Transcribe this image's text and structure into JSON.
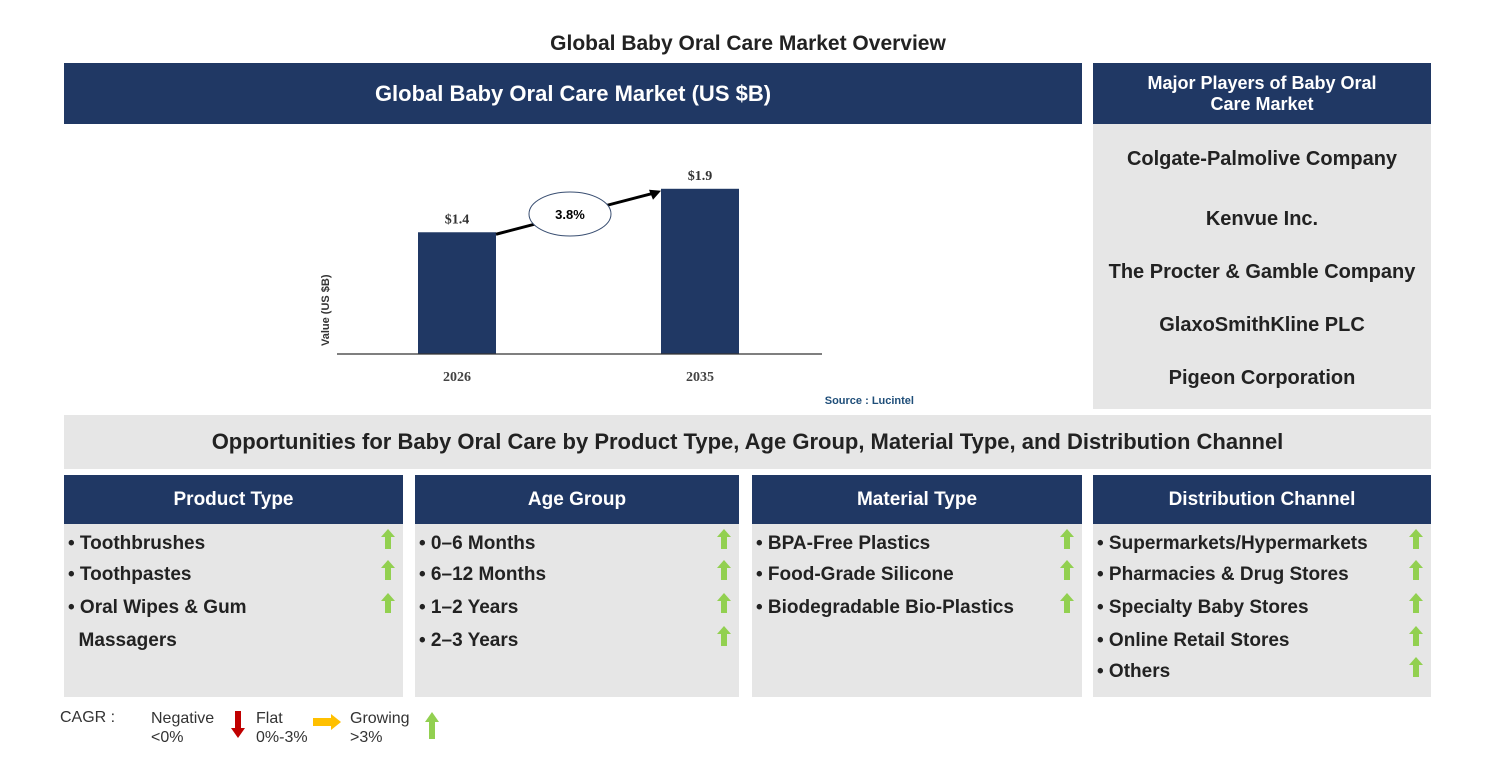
{
  "title": "Global Baby Oral Care Market Overview",
  "chart_header": "Global Baby Oral Care Market (US $B)",
  "chart_data": {
    "type": "bar",
    "categories": [
      "2026",
      "2035"
    ],
    "values": [
      1.4,
      1.9
    ],
    "data_labels": [
      "$1.4",
      "$1.9"
    ],
    "ylabel": "Value (US $B)",
    "ylim": [
      0,
      2.3
    ],
    "cagr_annotation": "3.8%",
    "bar_color": "#203864",
    "source": "Source : Lucintel"
  },
  "players": {
    "header": "Major Players of Baby Oral Care Market",
    "items": [
      "Colgate-Palmolive Company",
      "Kenvue Inc.",
      "The Procter & Gamble Company",
      "GlaxoSmithKline PLC",
      "Pigeon Corporation"
    ]
  },
  "opportunities": "Opportunities for Baby Oral Care by Product Type, Age Group, Material Type, and Distribution Channel",
  "segments": [
    {
      "header": "Product Type",
      "items": [
        "• Toothbrushes",
        "• Toothpastes",
        "• Oral Wipes & Gum",
        "  Massagers"
      ],
      "trend": "growing"
    },
    {
      "header": "Age Group",
      "items": [
        "• 0–6 Months",
        "• 6–12 Months",
        "• 1–2 Years",
        "• 2–3 Years"
      ],
      "trend": "growing"
    },
    {
      "header": "Material Type",
      "items": [
        "• BPA-Free Plastics",
        "• Food-Grade Silicone",
        "• Biodegradable Bio-Plastics"
      ],
      "trend": "growing"
    },
    {
      "header": "Distribution Channel",
      "items": [
        "• Supermarkets/Hypermarkets",
        "• Pharmacies & Drug Stores",
        "• Specialty Baby Stores",
        "• Online Retail Stores",
        "• Others"
      ],
      "trend": "growing"
    }
  ],
  "legend": {
    "label": "CAGR :",
    "negative": "Negative",
    "negative_range": "<0%",
    "flat": "Flat",
    "flat_range": "0%-3%",
    "growing": "Growing",
    "growing_range": ">3%",
    "colors": {
      "negative": "#c00000",
      "flat": "#ffc000",
      "growing": "#92d050"
    }
  }
}
